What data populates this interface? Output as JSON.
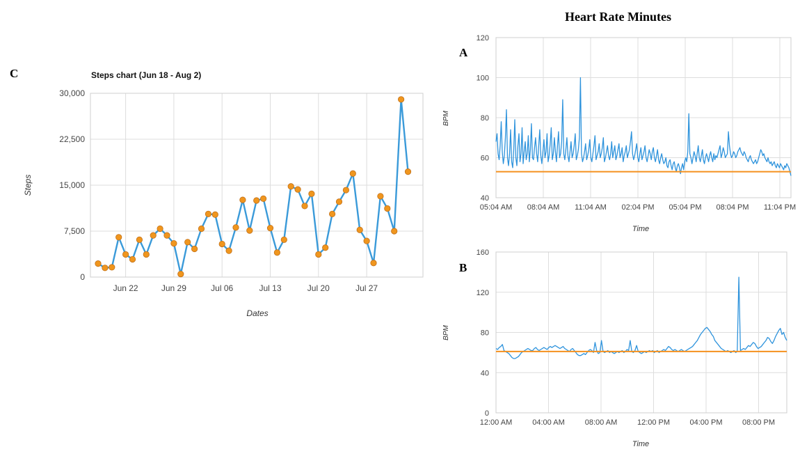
{
  "page": {
    "title": "Heart Rate Minutes",
    "panels": {
      "a": "A",
      "b": "B",
      "c": "C"
    }
  },
  "chart_data": [
    {
      "id": "steps",
      "type": "line",
      "title": "Steps chart (Jun 18 - Aug 2)",
      "xlabel": "Dates",
      "ylabel": "Steps",
      "x_start_date": "2019-06-18",
      "x_ticks": [
        "Jun 22",
        "Jun 29",
        "Jul 06",
        "Jul 13",
        "Jul 20",
        "Jul 27"
      ],
      "y_ticks": [
        "0",
        "7,500",
        "15,000",
        "22,500",
        "30,000"
      ],
      "ylim": [
        0,
        30000
      ],
      "grid": true,
      "colors": {
        "line": "#3a9ad9",
        "marker": "#f0961e",
        "marker_edge": "#c0701a",
        "grid": "#dddddd"
      },
      "series": [
        {
          "values": [
            2200,
            1500,
            1600,
            6500,
            3700,
            2900,
            6100,
            3700,
            6800,
            7900,
            6800,
            5500,
            500,
            5700,
            4600,
            7900,
            10300,
            10200,
            5400,
            4300,
            8100,
            12600,
            7600,
            12500,
            12800,
            8000,
            4000,
            6100,
            14800,
            14300,
            11600,
            13600,
            3700,
            4800,
            10300,
            12300,
            14200,
            16900,
            7700,
            5900,
            2300,
            13200,
            11200,
            7500,
            29000,
            17200
          ]
        }
      ]
    },
    {
      "id": "heart-rate-a",
      "type": "line",
      "title": "",
      "xlabel": "Time",
      "ylabel": "BPM",
      "x_ticks": [
        "05:04 AM",
        "08:04 AM",
        "11:04 AM",
        "02:04 PM",
        "05:04 PM",
        "08:04 PM",
        "11:04 PM"
      ],
      "y_ticks": [
        "40",
        "60",
        "80",
        "100",
        "120"
      ],
      "ylim": [
        40,
        120
      ],
      "baseline": 53,
      "grid": true,
      "colors": {
        "line": "#2e93dc",
        "baseline": "#f5911e",
        "grid": "#dddddd"
      },
      "series": [
        {
          "values": [
            68,
            72,
            62,
            59,
            66,
            78,
            63,
            57,
            61,
            70,
            84,
            60,
            56,
            62,
            74,
            58,
            55,
            64,
            79,
            60,
            56,
            66,
            72,
            58,
            62,
            75,
            57,
            63,
            68,
            59,
            62,
            71,
            58,
            64,
            77,
            60,
            59,
            65,
            70,
            62,
            58,
            66,
            74,
            61,
            57,
            63,
            69,
            60,
            63,
            72,
            58,
            61,
            67,
            75,
            59,
            62,
            70,
            63,
            58,
            66,
            73,
            60,
            62,
            68,
            89,
            62,
            59,
            64,
            70,
            61,
            58,
            63,
            68,
            60,
            62,
            66,
            72,
            59,
            61,
            64,
            70,
            100,
            62,
            58,
            60,
            63,
            67,
            59,
            61,
            64,
            69,
            60,
            58,
            62,
            66,
            71,
            59,
            61,
            63,
            67,
            60,
            62,
            65,
            70,
            58,
            60,
            63,
            66,
            61,
            59,
            62,
            68,
            60,
            63,
            66,
            59,
            61,
            64,
            67,
            60,
            62,
            65,
            58,
            61,
            63,
            66,
            60,
            62,
            64,
            68,
            73,
            62,
            59,
            61,
            64,
            67,
            60,
            58,
            62,
            65,
            59,
            61,
            63,
            66,
            60,
            58,
            61,
            64,
            62,
            59,
            63,
            65,
            60,
            58,
            61,
            64,
            59,
            57,
            60,
            62,
            59,
            57,
            58,
            60,
            56,
            55,
            58,
            59,
            56,
            54,
            57,
            58,
            55,
            53,
            56,
            57,
            55,
            52,
            55,
            57,
            54,
            58,
            60,
            58,
            63,
            82,
            62,
            60,
            57,
            60,
            63,
            61,
            58,
            62,
            66,
            60,
            58,
            61,
            64,
            59,
            57,
            60,
            62,
            60,
            58,
            61,
            63,
            60,
            58,
            62,
            59,
            61,
            60,
            62,
            64,
            66,
            60,
            62,
            65,
            63,
            60,
            61,
            62,
            73,
            66,
            62,
            60,
            61,
            63,
            62,
            60,
            61,
            63,
            64,
            65,
            63,
            62,
            61,
            63,
            62,
            60,
            59,
            58,
            60,
            61,
            59,
            58,
            57,
            58,
            59,
            57,
            58,
            60,
            62,
            64,
            63,
            61,
            62,
            60,
            59,
            58,
            60,
            58,
            57,
            58,
            56,
            57,
            58,
            56,
            55,
            57,
            56,
            55,
            57,
            56,
            55,
            54,
            56,
            55,
            57,
            56,
            55,
            53,
            51
          ]
        }
      ]
    },
    {
      "id": "heart-rate-b",
      "type": "line",
      "title": "",
      "xlabel": "Time",
      "ylabel": "BPM",
      "x_ticks": [
        "12:00 AM",
        "04:00 AM",
        "08:00 AM",
        "12:00 PM",
        "04:00 PM",
        "08:00 PM"
      ],
      "y_ticks": [
        "0",
        "40",
        "80",
        "120",
        "160"
      ],
      "ylim": [
        0,
        160
      ],
      "baseline": 61,
      "grid": true,
      "colors": {
        "line": "#2e93dc",
        "baseline": "#f5911e",
        "grid": "#dddddd"
      },
      "series": [
        {
          "values": [
            64,
            63,
            65,
            66,
            68,
            62,
            61,
            60,
            59,
            57,
            55,
            54,
            54,
            55,
            56,
            58,
            60,
            61,
            62,
            63,
            64,
            63,
            62,
            62,
            64,
            65,
            63,
            62,
            63,
            64,
            65,
            64,
            63,
            65,
            66,
            65,
            66,
            67,
            66,
            65,
            64,
            65,
            66,
            64,
            63,
            62,
            61,
            63,
            64,
            62,
            60,
            58,
            57,
            57,
            58,
            59,
            58,
            60,
            62,
            63,
            62,
            60,
            70,
            62,
            59,
            60,
            72,
            61,
            60,
            61,
            62,
            60,
            61,
            60,
            59,
            60,
            61,
            60,
            61,
            62,
            60,
            61,
            63,
            62,
            72,
            61,
            60,
            62,
            67,
            61,
            60,
            59,
            60,
            61,
            60,
            61,
            62,
            61,
            62,
            60,
            61,
            62,
            60,
            61,
            62,
            63,
            62,
            64,
            66,
            65,
            63,
            62,
            63,
            62,
            61,
            62,
            63,
            62,
            61,
            62,
            63,
            64,
            65,
            66,
            68,
            70,
            72,
            75,
            78,
            80,
            82,
            84,
            85,
            83,
            81,
            78,
            76,
            72,
            70,
            68,
            66,
            64,
            63,
            62,
            61,
            62,
            61,
            60,
            61,
            62,
            60,
            61,
            135,
            62,
            63,
            64,
            63,
            65,
            67,
            66,
            68,
            70,
            69,
            66,
            64,
            65,
            66,
            68,
            70,
            72,
            75,
            74,
            71,
            69,
            72,
            76,
            79,
            82,
            84,
            78,
            80,
            75,
            72
          ]
        }
      ]
    }
  ]
}
